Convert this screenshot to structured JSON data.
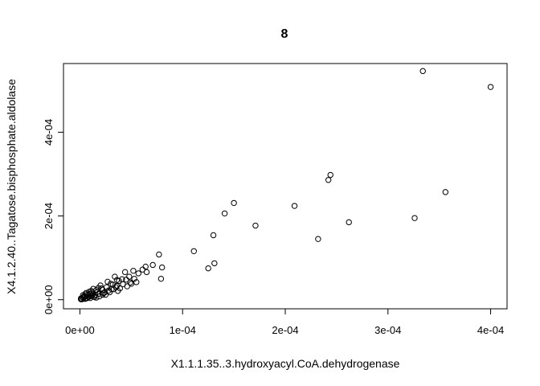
{
  "chart_data": {
    "type": "scatter",
    "title": "8",
    "xlabel": "X1.1.1.35..3.hydroxyacyl.CoA.dehydrogenase",
    "ylabel": "X4.1.2.40..Tagatose.bisphosphate.aldolase",
    "xlim": [
      -1.6e-05,
      0.000416
    ],
    "ylim": [
      -2.17e-05,
      0.000564
    ],
    "x_ticks": [
      0,
      0.0001,
      0.0002,
      0.0003,
      0.0004
    ],
    "x_tick_labels": [
      "0e+00",
      "1e-04",
      "2e-04",
      "3e-04",
      "4e-04"
    ],
    "y_ticks": [
      0,
      0.0002,
      0.0004
    ],
    "y_tick_labels": [
      "0e+00",
      "2e-04",
      "4e-04"
    ],
    "grid": false,
    "marker": "open-circle",
    "x": [
      0.000334,
      0.0004,
      0.000244,
      0.000242,
      0.000356,
      0.00015,
      0.000209,
      0.000141,
      0.000262,
      0.000326,
      0.000171,
      0.00013,
      0.000232,
      0.000111,
      0.000131,
      0.000125,
      7.7e-05,
      8e-05,
      7.9e-05,
      7.1e-05,
      6.4e-05,
      6.5e-05,
      5.7e-05,
      5.3e-05,
      5e-05,
      4.8e-05,
      4.5e-05,
      4.4e-05,
      4.2e-05,
      3.8e-05,
      3.6e-05,
      3.4e-05,
      3.3e-05,
      3e-05,
      2.8e-05,
      2.6e-05,
      2.4e-05,
      2.2e-05,
      2e-05,
      1.8e-05,
      1.6e-05,
      1.5e-05,
      1.3e-05,
      1.2e-05,
      1.1e-05,
      1e-05,
      9e-06,
      8e-06,
      7e-06,
      6e-06,
      5e-06,
      4e-06,
      3e-06,
      2e-06,
      1e-06,
      5.5e-05,
      5.2e-05,
      4.1e-05,
      3.7e-05,
      3.2e-05,
      2.7e-05,
      2.5e-05,
      2.1e-05,
      1.9e-05,
      1.7e-05,
      1.4e-05,
      1.2e-05,
      1e-05,
      8e-06,
      6e-06,
      4e-06,
      3e-06,
      2e-06,
      1e-06,
      6e-06,
      9e-06,
      5e-06,
      3e-06,
      1.1e-05,
      1.4e-05,
      1.8e-05,
      2.3e-05,
      2.9e-05,
      3.5e-05,
      3.9e-05,
      4.6e-05,
      6.1e-05,
      4.9e-05,
      3.6e-05,
      3.1e-05,
      2.2e-05,
      1.6e-05,
      1.3e-05
    ],
    "y": [
      0.000546,
      0.000508,
      0.000298,
      0.000286,
      0.000257,
      0.000231,
      0.000224,
      0.000206,
      0.000185,
      0.000195,
      0.000177,
      0.000154,
      0.000145,
      0.000116,
      8.7e-05,
      7.5e-05,
      0.000108,
      7.7e-05,
      5e-05,
      8.3e-05,
      7.9e-05,
      6.6e-05,
      6.3e-05,
      5e-05,
      3.8e-05,
      5.5e-05,
      4.8e-05,
      6.6e-05,
      3.7e-05,
      4.5e-05,
      3.3e-05,
      5.5e-05,
      2.5e-05,
      3.8e-05,
      2.2e-05,
      3e-05,
      1.7e-05,
      2.4e-05,
      3.4e-05,
      1.4e-05,
      2.3e-05,
      1.2e-05,
      2.6e-05,
      1.8e-05,
      9e-06,
      1.4e-05,
      7e-06,
      1.2e-05,
      4e-06,
      1.6e-05,
      2e-06,
      9e-06,
      5e-06,
      1e-06,
      3e-06,
      4.2e-05,
      6.9e-05,
      4.9e-05,
      2.1e-05,
      3.6e-05,
      4.3e-05,
      1.2e-05,
      2.7e-05,
      8e-06,
      1.9e-05,
      6e-06,
      1.1e-05,
      4e-06,
      7e-06,
      3e-06,
      6e-06,
      1.1e-05,
      2e-06,
      1e-06,
      1.3e-05,
      1.9e-05,
      8e-06,
      5e-06,
      2.1e-05,
      9e-06,
      2.8e-05,
      1.6e-05,
      1.8e-05,
      3e-05,
      2.7e-05,
      3.2e-05,
      7.2e-05,
      4.1e-05,
      4.7e-05,
      2.5e-05,
      1.2e-05,
      5e-06,
      1.5e-05
    ]
  }
}
